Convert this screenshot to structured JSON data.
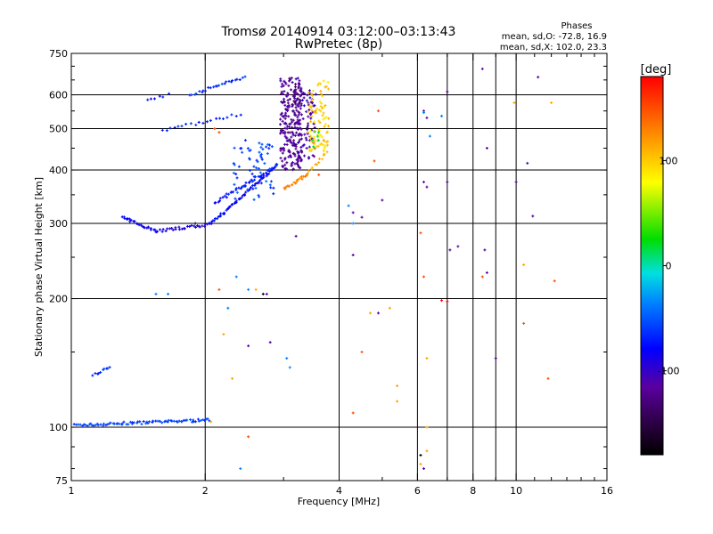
{
  "chart_data": {
    "type": "scatter",
    "title": "Tromsø 20140914 03:12:00–03:13:43",
    "subtitle": "RwPretec (8p)",
    "xlabel": "Frequency [MHz]",
    "ylabel": "Stationary phase Virtual Height [km]",
    "x_scale": "log",
    "y_scale": "log",
    "xlim": [
      1,
      16
    ],
    "ylim": [
      75,
      750
    ],
    "x_ticks": [
      1,
      2,
      4,
      6,
      8,
      10,
      16
    ],
    "x_tick_labels": [
      "1",
      "2",
      "4",
      "6",
      "8",
      "10",
      "16"
    ],
    "x_gridlines": [
      2,
      4,
      6,
      7,
      8,
      9,
      10
    ],
    "y_ticks": [
      75,
      100,
      200,
      300,
      400,
      500,
      600,
      750
    ],
    "y_tick_labels": [
      "75",
      "100",
      "200",
      "300",
      "400",
      "500",
      "600",
      "750"
    ],
    "y_gridlines": [
      100,
      200,
      300,
      400,
      500,
      600
    ],
    "grid": true,
    "phase_stats": {
      "heading": "Phases",
      "line_o": "mean, sd,O: -72.8, 16.9",
      "line_x": "mean, sd,X: 102.0, 23.3"
    },
    "colorbar": {
      "label": "[deg]",
      "range": [
        -180,
        180
      ],
      "ticks": [
        -100,
        0,
        100
      ],
      "tick_labels": [
        "-100",
        "0",
        "100"
      ],
      "colormap": "rainbow (black → purple → blue → cyan → green → yellow → red)"
    },
    "series": [
      {
        "kind": "trace",
        "from": [
          1.02,
          101
        ],
        "to": [
          2.05,
          104
        ],
        "phase": -60,
        "n": 80
      },
      {
        "kind": "trace",
        "from": [
          1.12,
          133
        ],
        "to": [
          1.22,
          138
        ],
        "phase": -65,
        "n": 10
      },
      {
        "kind": "trace",
        "from": [
          1.3,
          310
        ],
        "to": [
          1.55,
          288
        ],
        "phase": -85,
        "n": 25
      },
      {
        "kind": "trace",
        "from": [
          1.55,
          288
        ],
        "to": [
          2.05,
          298
        ],
        "phase": -90,
        "n": 30
      },
      {
        "kind": "trace",
        "from": [
          2.05,
          298
        ],
        "to": [
          2.9,
          410
        ],
        "phase": -80,
        "n": 60
      },
      {
        "kind": "trace",
        "from": [
          2.1,
          335
        ],
        "to": [
          2.9,
          410
        ],
        "phase": -75,
        "n": 40
      },
      {
        "kind": "trace",
        "from": [
          1.6,
          495
        ],
        "to": [
          2.4,
          540
        ],
        "phase": -70,
        "n": 20
      },
      {
        "kind": "trace",
        "from": [
          1.85,
          600
        ],
        "to": [
          2.45,
          660
        ],
        "phase": -65,
        "n": 25
      },
      {
        "kind": "trace",
        "from": [
          1.48,
          585
        ],
        "to": [
          1.65,
          600
        ],
        "phase": -75,
        "n": 6
      },
      {
        "kind": "trace",
        "from": [
          3.0,
          362
        ],
        "to": [
          3.4,
          390
        ],
        "phase": 130,
        "n": 20
      },
      {
        "kind": "trace",
        "from": [
          3.4,
          395
        ],
        "to": [
          3.75,
          440
        ],
        "phase": 110,
        "n": 12
      },
      {
        "kind": "cluster",
        "x": [
          2.95,
          3.3
        ],
        "y": [
          400,
          660
        ],
        "phase": -120,
        "n": 260
      },
      {
        "kind": "cluster",
        "x": [
          3.3,
          3.55
        ],
        "y": [
          420,
          620
        ],
        "phase": -105,
        "n": 60
      },
      {
        "kind": "cluster",
        "x": [
          3.4,
          3.8
        ],
        "y": [
          440,
          650
        ],
        "phase": 95,
        "n": 90
      },
      {
        "kind": "cluster",
        "x": [
          3.45,
          3.6
        ],
        "y": [
          430,
          520
        ],
        "phase": 20,
        "n": 6
      },
      {
        "kind": "cluster",
        "x": [
          2.3,
          2.85
        ],
        "y": [
          340,
          470
        ],
        "phase": -60,
        "n": 60
      },
      {
        "kind": "points",
        "phase": 115,
        "pts": [
          [
            2.06,
            103
          ],
          [
            2.6,
            210
          ],
          [
            2.2,
            165
          ],
          [
            2.3,
            130
          ],
          [
            4.7,
            185
          ],
          [
            5.2,
            190
          ],
          [
            5.4,
            125
          ],
          [
            5.4,
            115
          ],
          [
            6.3,
            145
          ],
          [
            6.3,
            100
          ],
          [
            6.3,
            88
          ],
          [
            6.1,
            82
          ],
          [
            9.9,
            575
          ],
          [
            10.4,
            240
          ],
          [
            12.0,
            575
          ]
        ]
      },
      {
        "kind": "points",
        "phase": 150,
        "pts": [
          [
            2.1,
            500
          ],
          [
            2.15,
            490
          ],
          [
            2.15,
            210
          ],
          [
            3.6,
            390
          ],
          [
            4.3,
            108
          ],
          [
            4.9,
            550
          ],
          [
            4.5,
            150
          ],
          [
            6.2,
            225
          ],
          [
            8.4,
            225
          ],
          [
            6.1,
            285
          ],
          [
            2.5,
            95
          ],
          [
            12.2,
            220
          ],
          [
            10.4,
            175
          ],
          [
            11.8,
            130
          ],
          [
            4.8,
            420
          ]
        ]
      },
      {
        "kind": "points",
        "phase": 178,
        "pts": [
          [
            6.8,
            198
          ],
          [
            7.0,
            197
          ]
        ]
      },
      {
        "kind": "points",
        "phase": -115,
        "pts": [
          [
            2.5,
            155
          ],
          [
            2.8,
            158
          ],
          [
            2.75,
            205
          ],
          [
            3.2,
            280
          ],
          [
            4.3,
            318
          ],
          [
            4.3,
            253
          ],
          [
            4.5,
            310
          ],
          [
            6.2,
            375
          ],
          [
            6.3,
            365
          ],
          [
            7.0,
            375
          ],
          [
            6.2,
            550
          ],
          [
            6.3,
            530
          ],
          [
            7.1,
            260
          ],
          [
            7.4,
            265
          ],
          [
            8.5,
            260
          ],
          [
            8.6,
            230
          ],
          [
            8.6,
            450
          ],
          [
            10.0,
            375
          ],
          [
            10.6,
            415
          ],
          [
            5.0,
            340
          ],
          [
            4.9,
            185
          ],
          [
            9.0,
            145
          ],
          [
            7.0,
            610
          ],
          [
            11.2,
            660
          ],
          [
            10.9,
            312
          ],
          [
            8.4,
            690
          ],
          [
            6.2,
            80
          ]
        ]
      },
      {
        "kind": "points",
        "phase": -40,
        "pts": [
          [
            2.35,
            225
          ],
          [
            2.5,
            210
          ],
          [
            2.25,
            190
          ],
          [
            3.1,
            138
          ],
          [
            3.05,
            145
          ],
          [
            1.65,
            205
          ],
          [
            1.55,
            205
          ],
          [
            4.3,
            300
          ],
          [
            4.2,
            330
          ],
          [
            6.4,
            480
          ],
          [
            6.2,
            545
          ],
          [
            2.4,
            80
          ],
          [
            6.8,
            535
          ]
        ]
      },
      {
        "kind": "points",
        "phase": -175,
        "pts": [
          [
            6.1,
            86
          ],
          [
            1.9,
            300
          ],
          [
            2.7,
            205
          ]
        ]
      }
    ]
  }
}
